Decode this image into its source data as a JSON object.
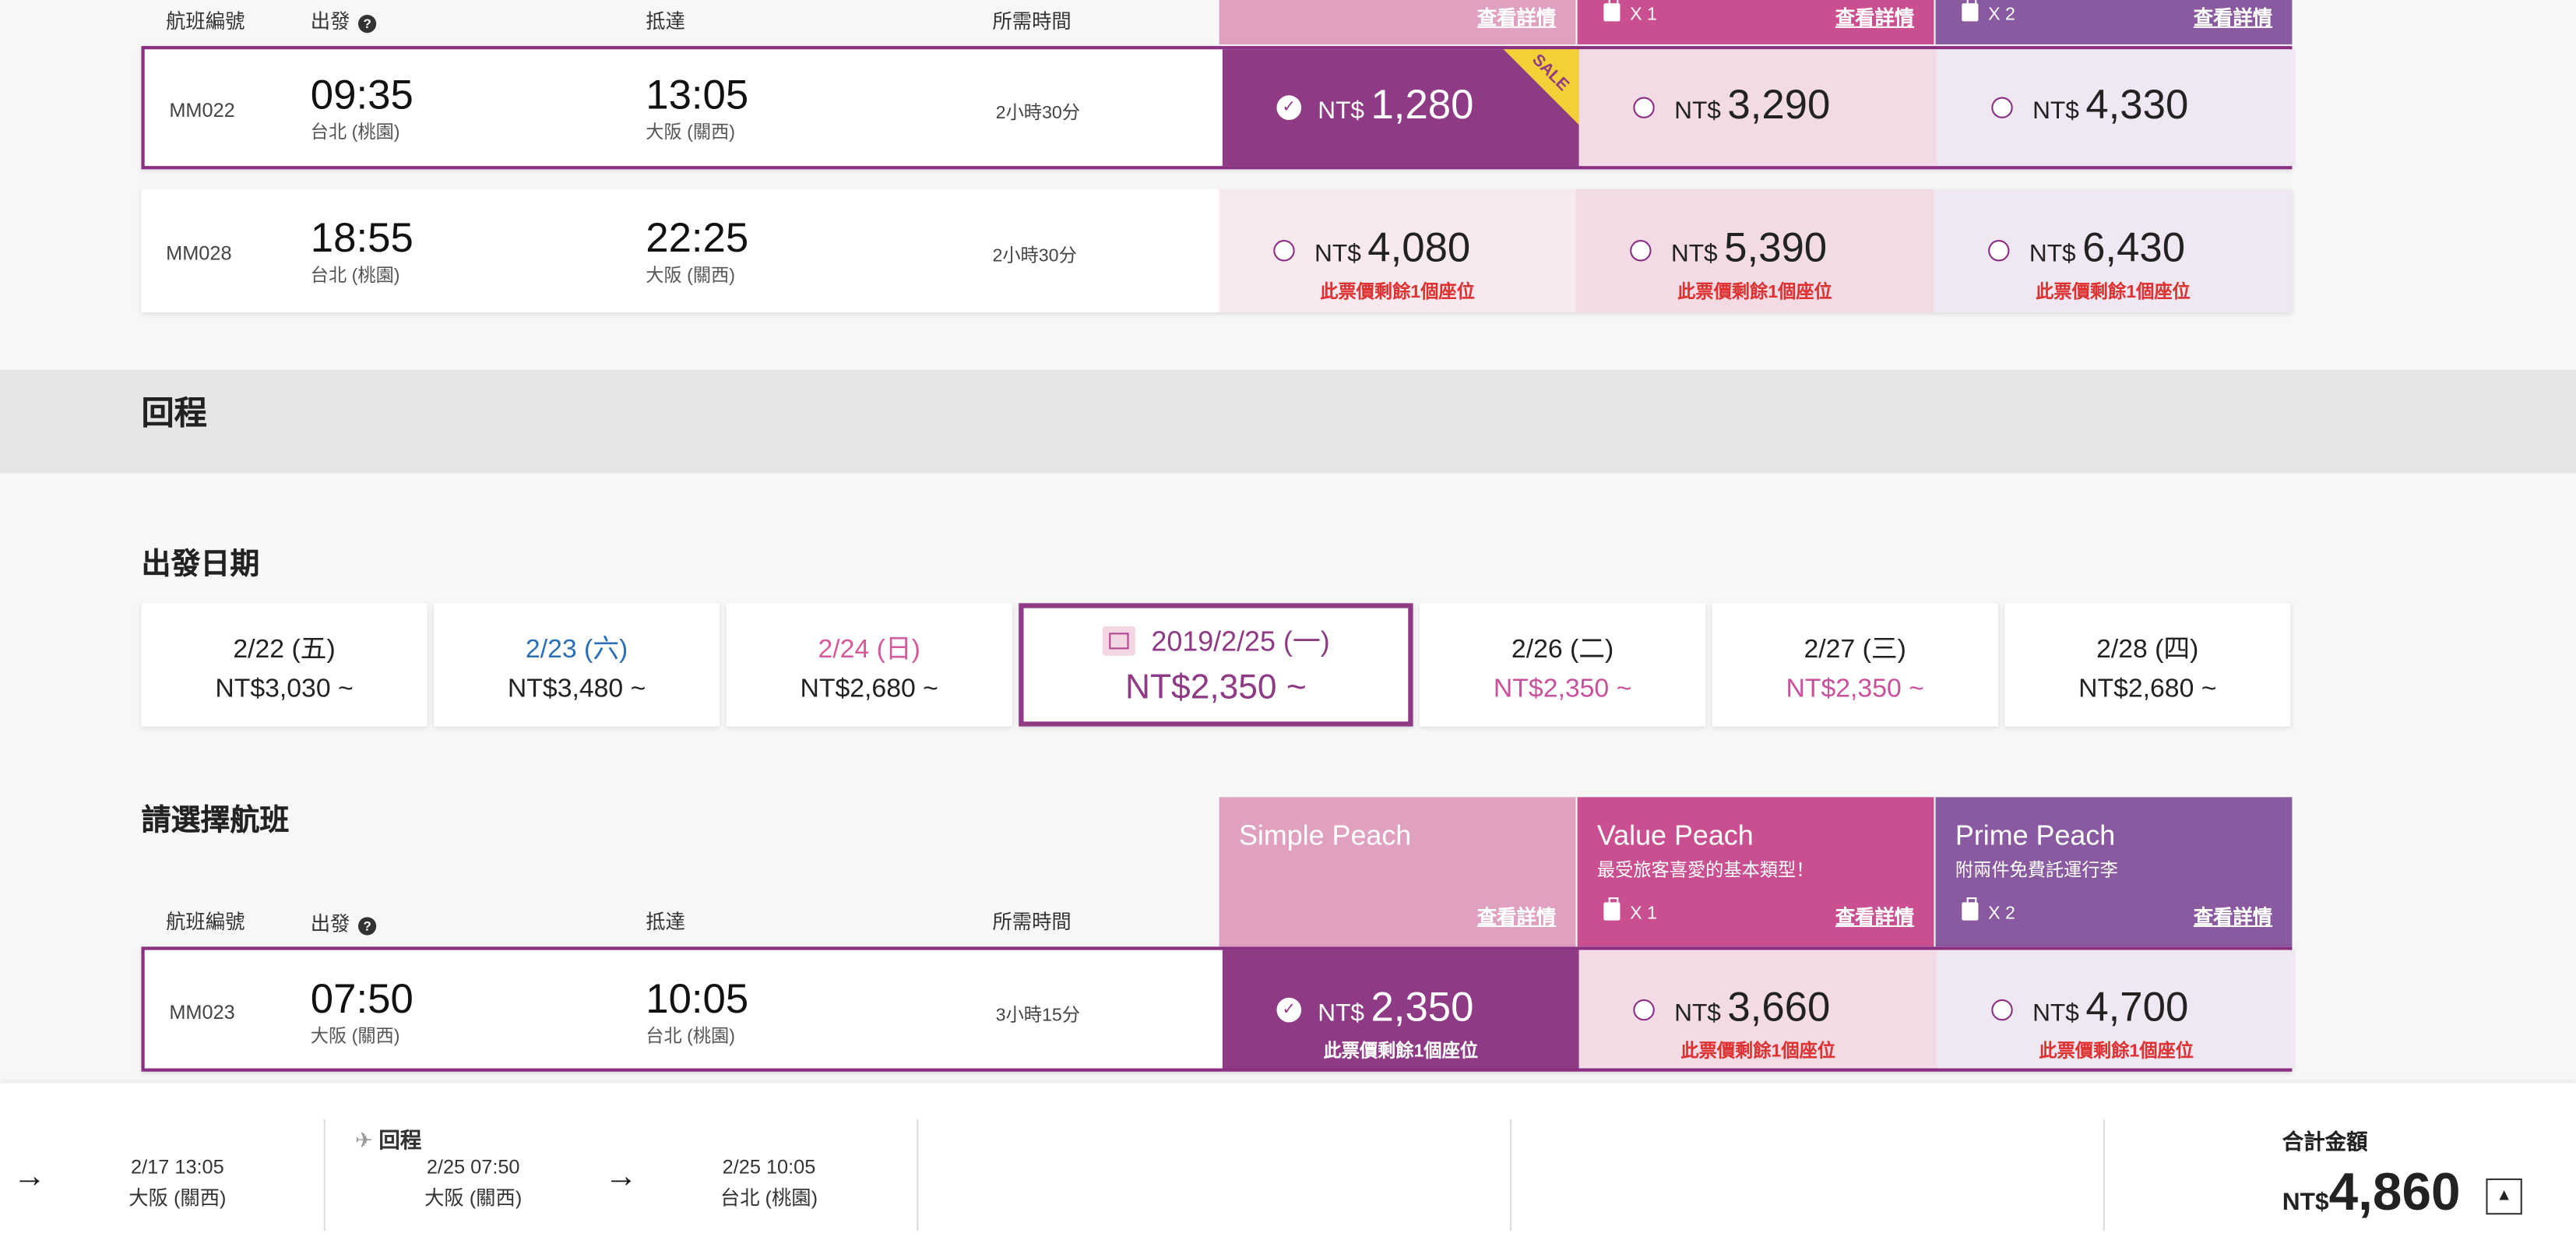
{
  "outbound_header": {
    "flight_no": "航班編號",
    "depart": "出發",
    "arrive": "抵達",
    "duration": "所需時間",
    "details": "查看詳情",
    "bag_x1": "X 1",
    "bag_x2": "X 2"
  },
  "outbound_flights": [
    {
      "flight": "MM022",
      "dep_time": "09:35",
      "dep_city": "台北 (桃園)",
      "arr_time": "13:05",
      "arr_city": "大阪 (關西)",
      "duration": "2小時30分",
      "fares": [
        {
          "cur": "NT$",
          "amt": "1,280",
          "selected": true,
          "sale": "SALE"
        },
        {
          "cur": "NT$",
          "amt": "3,290"
        },
        {
          "cur": "NT$",
          "amt": "4,330"
        }
      ]
    },
    {
      "flight": "MM028",
      "dep_time": "18:55",
      "dep_city": "台北 (桃園)",
      "arr_time": "22:25",
      "arr_city": "大阪 (關西)",
      "duration": "2小時30分",
      "fares": [
        {
          "cur": "NT$",
          "amt": "4,080",
          "note": "此票價剩餘1個座位"
        },
        {
          "cur": "NT$",
          "amt": "5,390",
          "note": "此票價剩餘1個座位"
        },
        {
          "cur": "NT$",
          "amt": "6,430",
          "note": "此票價剩餘1個座位"
        }
      ]
    }
  ],
  "return_section": {
    "title": "回程",
    "date_title": "出發日期",
    "flight_title": "請選擇航班"
  },
  "dates": [
    {
      "date": "2/22 (五)",
      "price": "NT$3,030 ~",
      "color": "#222222",
      "pcolor": "#222222"
    },
    {
      "date": "2/23 (六)",
      "price": "NT$3,480 ~",
      "color": "#2a6fb5",
      "pcolor": "#222222"
    },
    {
      "date": "2/24 (日)",
      "price": "NT$2,680 ~",
      "color": "#d45a9a",
      "pcolor": "#222222"
    },
    {
      "date": "2019/2/25 (一)",
      "price": "NT$2,350 ~",
      "active": true
    },
    {
      "date": "2/26 (二)",
      "price": "NT$2,350 ~",
      "color": "#222222",
      "pcolor": "#c9509a"
    },
    {
      "date": "2/27 (三)",
      "price": "NT$2,350 ~",
      "color": "#222222",
      "pcolor": "#c9509a"
    },
    {
      "date": "2/28 (四)",
      "price": "NT$2,680 ~",
      "color": "#222222",
      "pcolor": "#222222"
    }
  ],
  "plans": [
    {
      "name": "Simple Peach",
      "sub": "",
      "bag": "",
      "details": "查看詳情",
      "color": "#e0a0bf"
    },
    {
      "name": "Value Peach",
      "sub": "最受旅客喜愛的基本類型！",
      "bag": "X 1",
      "details": "查看詳情",
      "color": "#c94f91"
    },
    {
      "name": "Prime Peach",
      "sub": "附兩件免費託運行李",
      "bag": "X 2",
      "details": "查看詳情",
      "color": "#8a5aa1"
    }
  ],
  "return_header": {
    "flight_no": "航班編號",
    "depart": "出發",
    "arrive": "抵達",
    "duration": "所需時間"
  },
  "return_flights": [
    {
      "flight": "MM023",
      "dep_time": "07:50",
      "dep_city": "大阪 (關西)",
      "arr_time": "10:05",
      "arr_city": "台北 (桃園)",
      "duration": "3小時15分",
      "fares": [
        {
          "cur": "NT$",
          "amt": "2,350",
          "note": "此票價剩餘1個座位",
          "selected": true
        },
        {
          "cur": "NT$",
          "amt": "3,660",
          "note": "此票價剩餘1個座位"
        },
        {
          "cur": "NT$",
          "amt": "4,700",
          "note": "此票價剩餘1個座位"
        }
      ]
    }
  ],
  "footer": {
    "out_arrive": "2/17 13:05",
    "out_arrive_city": "大阪 (關西)",
    "ret_label": "回程",
    "ret_dep": "2/25 07:50",
    "ret_dep_city": "大阪 (關西)",
    "ret_arr": "2/25 10:05",
    "ret_arr_city": "台北 (桃園)",
    "total_label": "合計金額",
    "total_cur": "NT$",
    "total_amt": "4,860"
  },
  "icons": {
    "help": "help-icon",
    "check": "check-icon",
    "plane": "plane-icon",
    "arrow": "arrow-right-icon",
    "bag": "baggage-icon",
    "calendar": "calendar-icon",
    "chevron": "chevron-up-icon"
  }
}
